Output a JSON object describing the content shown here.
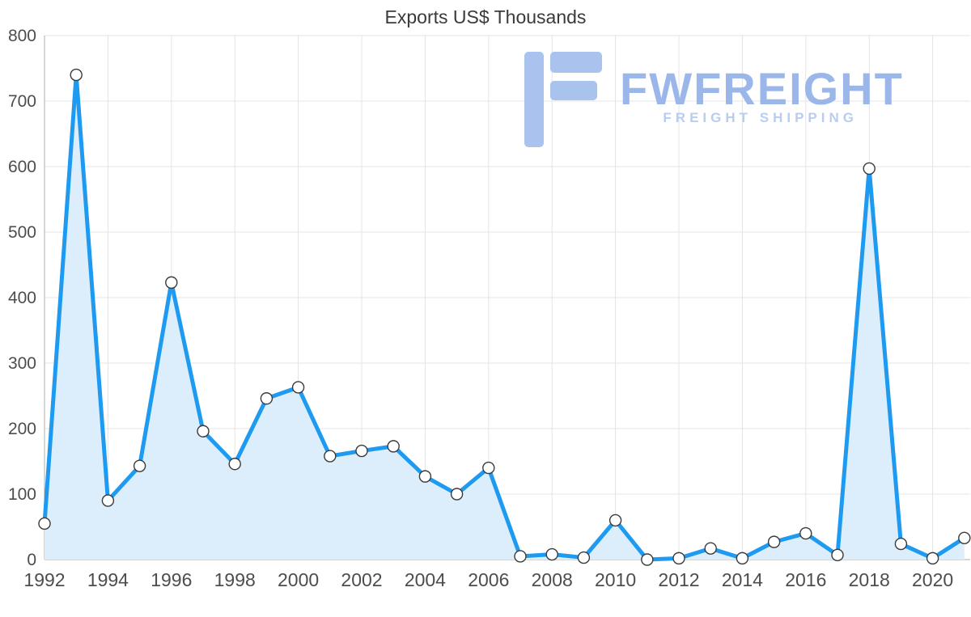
{
  "title": "Exports US$ Thousands",
  "watermark": {
    "brand": "FWFREIGHT",
    "tagline": "FREIGHT SHIPPING",
    "logo_icon": "fwfreight-logo-icon",
    "brand_color": "#9bb7ea",
    "tagline_color": "#b9cdf3",
    "glyph_color": "#a9c3ee"
  },
  "chart_data": {
    "type": "area",
    "title": "Exports US$ Thousands",
    "x": [
      1992,
      1993,
      1994,
      1995,
      1996,
      1997,
      1998,
      1999,
      2000,
      2001,
      2002,
      2003,
      2004,
      2005,
      2006,
      2007,
      2008,
      2009,
      2010,
      2011,
      2012,
      2013,
      2014,
      2015,
      2016,
      2017,
      2018,
      2019,
      2020,
      2021
    ],
    "values": [
      55,
      740,
      90,
      143,
      423,
      196,
      146,
      246,
      263,
      158,
      166,
      173,
      127,
      100,
      140,
      5,
      8,
      3,
      60,
      0,
      2,
      17,
      2,
      27,
      40,
      7,
      597,
      24,
      2,
      33
    ],
    "xlabel": "",
    "ylabel": "",
    "ylim": [
      0,
      800
    ],
    "y_ticks": [
      0,
      100,
      200,
      300,
      400,
      500,
      600,
      700,
      800
    ],
    "x_tick_labels": [
      "1992",
      "1994",
      "1996",
      "1998",
      "2000",
      "2002",
      "2004",
      "2006",
      "2008",
      "2010",
      "2012",
      "2014",
      "2016",
      "2018",
      "2020"
    ],
    "grid": true,
    "legend": "none",
    "line_color": "#1e9bf0",
    "fill_color": "#dceefb",
    "marker_fill": "#ffffff",
    "marker_stroke": "#3a3a3a",
    "grid_color": "#e4e4e4",
    "axis_color": "#adadad",
    "tick_label_color": "#4d4d4d"
  }
}
